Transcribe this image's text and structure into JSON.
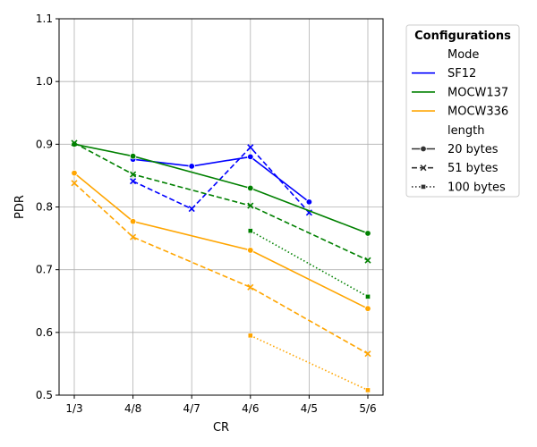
{
  "chart_data": {
    "type": "line",
    "title": "",
    "xlabel": "CR",
    "ylabel": "PDR",
    "categories": [
      "1/3",
      "4/8",
      "4/7",
      "4/6",
      "4/5",
      "5/6"
    ],
    "ylim": [
      0.5,
      1.1
    ],
    "yticks": [
      "0.5",
      "0.6",
      "0.7",
      "0.8",
      "0.9",
      "1.0",
      "1.1"
    ],
    "grid": true,
    "legend": {
      "placement": "outside-right",
      "title": "Configurations",
      "hue_header": "Mode",
      "style_header": "length",
      "hue_entries": [
        {
          "label": "SF12",
          "color": "#0000ff"
        },
        {
          "label": "MOCW137",
          "color": "#008000"
        },
        {
          "label": "MOCW336",
          "color": "#ffa500"
        }
      ],
      "style_entries": [
        {
          "label": "20 bytes",
          "dash": "solid",
          "marker": "circle"
        },
        {
          "label": "51 bytes",
          "dash": "dashed",
          "marker": "x"
        },
        {
          "label": "100 bytes",
          "dash": "dotted",
          "marker": "square"
        }
      ]
    },
    "series": [
      {
        "mode": "SF12",
        "length": "20 bytes",
        "color": "#0000ff",
        "dash": "solid",
        "marker": "circle",
        "values": [
          null,
          0.876,
          0.865,
          0.88,
          0.808,
          null
        ]
      },
      {
        "mode": "SF12",
        "length": "51 bytes",
        "color": "#0000ff",
        "dash": "dashed",
        "marker": "x",
        "values": [
          null,
          0.841,
          0.797,
          0.895,
          0.791,
          null
        ]
      },
      {
        "mode": "MOCW137",
        "length": "20 bytes",
        "color": "#008000",
        "dash": "solid",
        "marker": "circle",
        "values": [
          0.9,
          0.881,
          null,
          0.83,
          null,
          0.758
        ]
      },
      {
        "mode": "MOCW137",
        "length": "51 bytes",
        "color": "#008000",
        "dash": "dashed",
        "marker": "x",
        "values": [
          0.902,
          0.852,
          null,
          0.802,
          null,
          0.715
        ]
      },
      {
        "mode": "MOCW137",
        "length": "100 bytes",
        "color": "#008000",
        "dash": "dotted",
        "marker": "square",
        "values": [
          null,
          null,
          null,
          0.762,
          null,
          0.657
        ]
      },
      {
        "mode": "MOCW336",
        "length": "20 bytes",
        "color": "#ffa500",
        "dash": "solid",
        "marker": "circle",
        "values": [
          0.854,
          0.777,
          null,
          0.731,
          null,
          0.638
        ]
      },
      {
        "mode": "MOCW336",
        "length": "51 bytes",
        "color": "#ffa500",
        "dash": "dashed",
        "marker": "x",
        "values": [
          0.838,
          0.752,
          null,
          0.672,
          null,
          0.566
        ]
      },
      {
        "mode": "MOCW336",
        "length": "100 bytes",
        "color": "#ffa500",
        "dash": "dotted",
        "marker": "square",
        "values": [
          null,
          null,
          null,
          0.595,
          null,
          0.508
        ]
      }
    ]
  }
}
